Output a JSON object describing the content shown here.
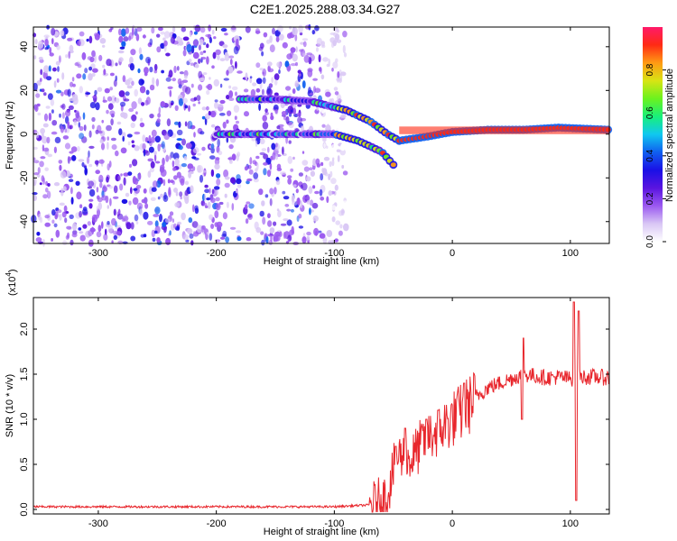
{
  "title": "C2E1.2025.288.03.34.G27",
  "colors": {
    "snr_line": "#e8262c",
    "axis": "#000000",
    "background": "#ffffff",
    "colormap": [
      "#ffffff",
      "#d9c7f5",
      "#9b59f0",
      "#5a14e0",
      "#1a10e6",
      "#1060f0",
      "#10c8f0",
      "#18f07a",
      "#6cf21e",
      "#d8e414",
      "#ff9a14",
      "#ff2a14",
      "#ff1a6a"
    ]
  },
  "chart_data": [
    {
      "type": "heatmap",
      "name": "spectrogram",
      "xlabel": "Height of straight line (km)",
      "ylabel": "Frequency (Hz)",
      "xlim": [
        -355,
        133
      ],
      "ylim": [
        -50,
        49
      ],
      "xticks": [
        -300,
        -200,
        -100,
        0,
        100
      ],
      "xtick_labels": [
        "-300",
        "-200",
        "-100",
        "0",
        "100"
      ],
      "yticks": [
        40,
        20,
        0,
        -20,
        -40
      ],
      "ytick_labels": [
        "40",
        "20",
        "0",
        "-20",
        "-40"
      ],
      "noise_region_x": [
        -355,
        -100
      ],
      "gap_x": -178,
      "ridges": [
        {
          "name": "upper-branch",
          "points": [
            [
              -180,
              16
            ],
            [
              -150,
              16
            ],
            [
              -120,
              15
            ],
            [
              -90,
              11
            ],
            [
              -70,
              6
            ],
            [
              -55,
              0
            ],
            [
              -45,
              -3
            ]
          ]
        },
        {
          "name": "lower-branch",
          "points": [
            [
              -200,
              0
            ],
            [
              -150,
              0
            ],
            [
              -120,
              0
            ],
            [
              -100,
              0
            ],
            [
              -80,
              -3
            ],
            [
              -60,
              -8
            ],
            [
              -50,
              -14
            ]
          ]
        },
        {
          "name": "direct-signal",
          "points": [
            [
              -45,
              -3
            ],
            [
              -20,
              -1
            ],
            [
              0,
              1
            ],
            [
              30,
              2
            ],
            [
              60,
              2
            ],
            [
              90,
              3
            ],
            [
              133,
              2
            ]
          ]
        }
      ],
      "colorbar": {
        "label": "Normalized spectral amplitude",
        "range": [
          0,
          1
        ],
        "ticks": [
          0.0,
          0.2,
          0.4,
          0.6,
          0.8
        ],
        "tick_labels": [
          "0.0",
          "0.2",
          "0.4",
          "0.6",
          "0.8"
        ]
      }
    },
    {
      "type": "line",
      "name": "snr",
      "xlabel": "Height of straight line (km)",
      "ylabel": "SNR (10 * v/v)",
      "y_scale_label": "(x10",
      "y_scale_exponent": "4",
      "xlim": [
        -355,
        133
      ],
      "ylim": [
        -0.05,
        2.35
      ],
      "xticks": [
        -300,
        -200,
        -100,
        0,
        100
      ],
      "xtick_labels": [
        "-300",
        "-200",
        "-100",
        "0",
        "100"
      ],
      "yticks": [
        0.0,
        0.5,
        1.0,
        1.5,
        2.0
      ],
      "ytick_labels": [
        "0.0",
        "0.5",
        "1.0",
        "1.5",
        "2.0"
      ],
      "trend": [
        [
          -355,
          0.03
        ],
        [
          -200,
          0.03
        ],
        [
          -100,
          0.03
        ],
        [
          -70,
          0.05
        ],
        [
          -55,
          0.15
        ],
        [
          -50,
          0.45
        ],
        [
          -45,
          0.6
        ],
        [
          -35,
          0.55
        ],
        [
          -25,
          0.75
        ],
        [
          -15,
          0.85
        ],
        [
          -5,
          0.95
        ],
        [
          0,
          1.0
        ],
        [
          10,
          1.1
        ],
        [
          20,
          1.25
        ],
        [
          30,
          1.35
        ],
        [
          40,
          1.4
        ],
        [
          50,
          1.45
        ],
        [
          60,
          1.5
        ],
        [
          70,
          1.48
        ],
        [
          80,
          1.46
        ],
        [
          90,
          1.47
        ],
        [
          100,
          1.45
        ],
        [
          110,
          1.47
        ],
        [
          120,
          1.47
        ],
        [
          133,
          1.46
        ]
      ],
      "spikes": [
        [
          -48,
          0.7
        ],
        [
          -40,
          0.9
        ],
        [
          -22,
          1.0
        ],
        [
          -12,
          1.1
        ],
        [
          10,
          1.4
        ],
        [
          60,
          1.9
        ],
        [
          59,
          1.0
        ],
        [
          103,
          2.3
        ],
        [
          105,
          0.1
        ],
        [
          107,
          2.2
        ]
      ]
    }
  ]
}
